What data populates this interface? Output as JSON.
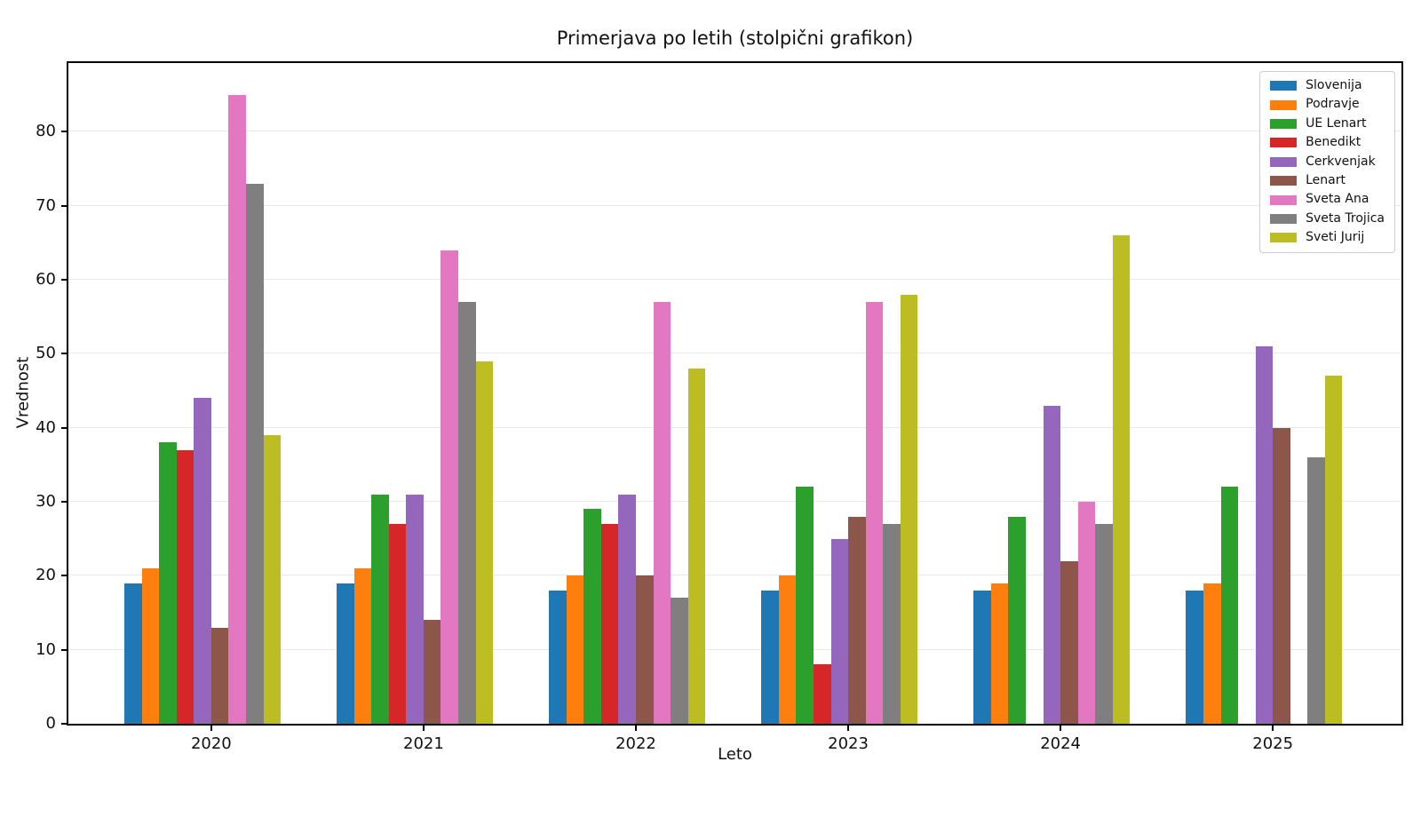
{
  "figure": {
    "title": "Primerjava po letih (stolpični grafikon)",
    "xlabel": "Leto",
    "ylabel": "Vrednost"
  },
  "style": {
    "background": "#ffffff",
    "spine_color": "#000000",
    "grid_color": "#e8e8e8",
    "text_color": "#111111",
    "legend_border_color": "#cccccc"
  },
  "chart_data": {
    "type": "bar",
    "title": "Primerjava po letih (stolpični grafikon)",
    "xlabel": "Leto",
    "ylabel": "Vrednost",
    "categories": [
      "2020",
      "2021",
      "2022",
      "2023",
      "2024",
      "2025"
    ],
    "series": [
      {
        "name": "Slovenija",
        "color": "#1f77b4",
        "values": [
          19,
          19,
          18,
          18,
          18,
          18
        ]
      },
      {
        "name": "Podravje",
        "color": "#ff7f0e",
        "values": [
          21,
          21,
          20,
          20,
          19,
          19
        ]
      },
      {
        "name": "UE Lenart",
        "color": "#2ca02c",
        "values": [
          38,
          31,
          29,
          32,
          28,
          32
        ]
      },
      {
        "name": "Benedikt",
        "color": "#d62728",
        "values": [
          37,
          27,
          27,
          8,
          0,
          0
        ]
      },
      {
        "name": "Cerkvenjak",
        "color": "#9467bd",
        "values": [
          44,
          31,
          31,
          25,
          43,
          51
        ]
      },
      {
        "name": "Lenart",
        "color": "#8c564b",
        "values": [
          13,
          14,
          20,
          28,
          22,
          40
        ]
      },
      {
        "name": "Sveta Ana",
        "color": "#e377c2",
        "values": [
          85,
          64,
          57,
          57,
          30,
          0
        ]
      },
      {
        "name": "Sveta Trojica",
        "color": "#7f7f7f",
        "values": [
          73,
          57,
          17,
          27,
          27,
          36
        ]
      },
      {
        "name": "Sveti Jurij",
        "color": "#bcbd22",
        "values": [
          39,
          49,
          48,
          58,
          66,
          47
        ]
      }
    ],
    "ylim": [
      0,
      89.3
    ],
    "yticks": [
      0,
      10,
      20,
      30,
      40,
      50,
      60,
      70,
      80
    ],
    "grid": true,
    "legend_position": "upper right"
  }
}
